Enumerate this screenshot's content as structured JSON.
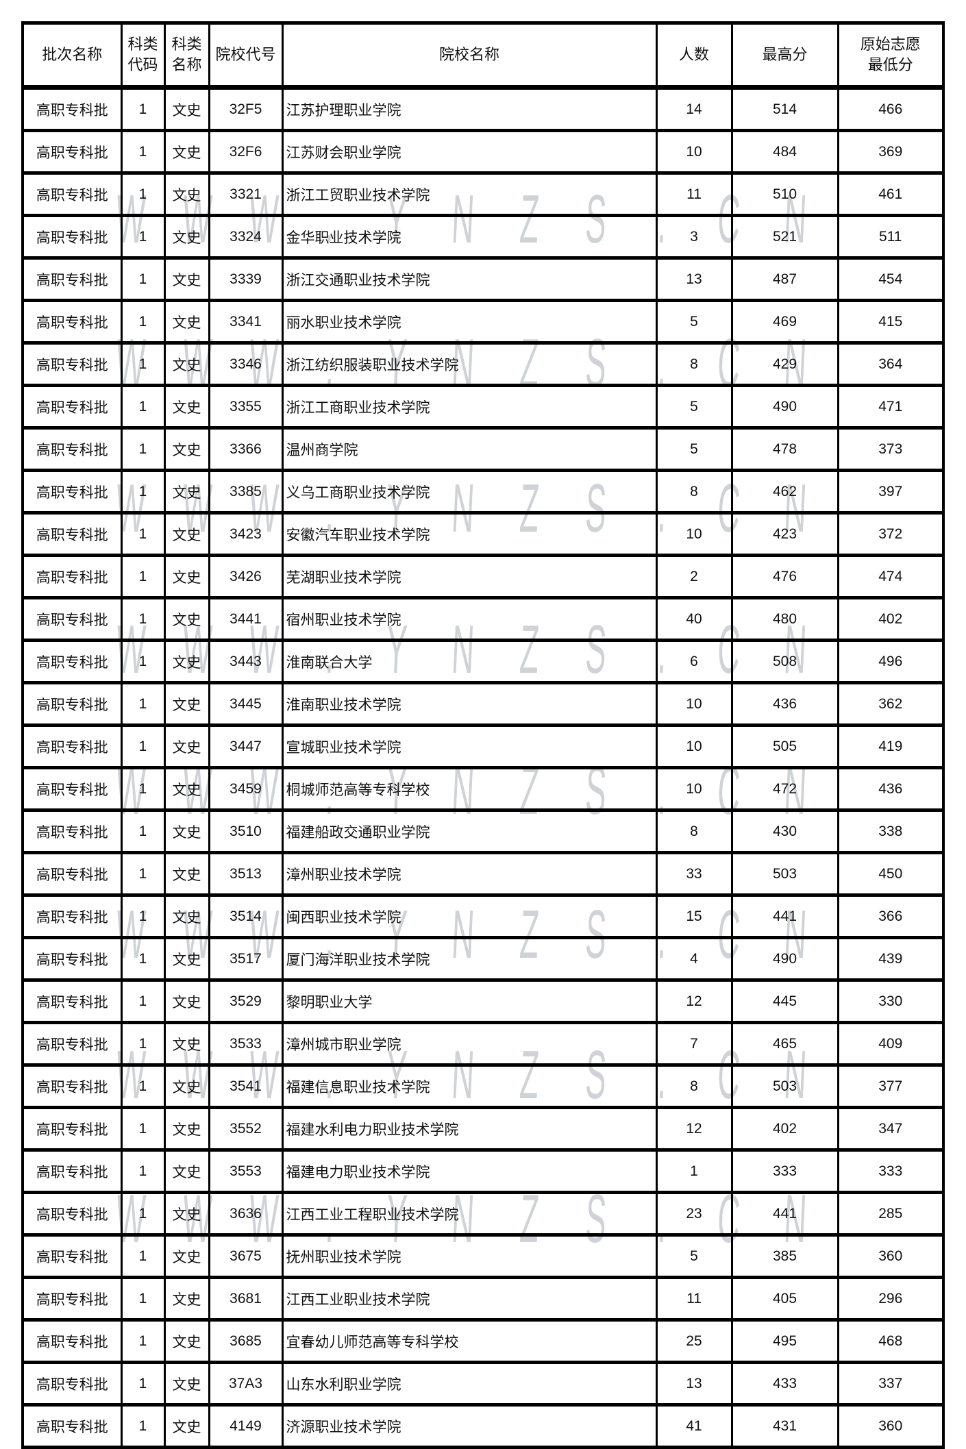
{
  "watermark": {
    "text": "WWW.YNZS.CN",
    "color": "#cfd2d6"
  },
  "table": {
    "headers": [
      "批次名称",
      "科类\n代码",
      "科类\n名称",
      "院校代号",
      "院校名称",
      "人数",
      "最高分",
      "原始志愿\n最低分"
    ],
    "rows": [
      [
        "高职专科批",
        "1",
        "文史",
        "32F5",
        "江苏护理职业学院",
        "14",
        "514",
        "466"
      ],
      [
        "高职专科批",
        "1",
        "文史",
        "32F6",
        "江苏财会职业学院",
        "10",
        "484",
        "369"
      ],
      [
        "高职专科批",
        "1",
        "文史",
        "3321",
        "浙江工贸职业技术学院",
        "11",
        "510",
        "461"
      ],
      [
        "高职专科批",
        "1",
        "文史",
        "3324",
        "金华职业技术学院",
        "3",
        "521",
        "511"
      ],
      [
        "高职专科批",
        "1",
        "文史",
        "3339",
        "浙江交通职业技术学院",
        "13",
        "487",
        "454"
      ],
      [
        "高职专科批",
        "1",
        "文史",
        "3341",
        "丽水职业技术学院",
        "5",
        "469",
        "415"
      ],
      [
        "高职专科批",
        "1",
        "文史",
        "3346",
        "浙江纺织服装职业技术学院",
        "8",
        "429",
        "364"
      ],
      [
        "高职专科批",
        "1",
        "文史",
        "3355",
        "浙江工商职业技术学院",
        "5",
        "490",
        "471"
      ],
      [
        "高职专科批",
        "1",
        "文史",
        "3366",
        "温州商学院",
        "5",
        "478",
        "373"
      ],
      [
        "高职专科批",
        "1",
        "文史",
        "3385",
        "义乌工商职业技术学院",
        "8",
        "462",
        "397"
      ],
      [
        "高职专科批",
        "1",
        "文史",
        "3423",
        "安徽汽车职业技术学院",
        "10",
        "423",
        "372"
      ],
      [
        "高职专科批",
        "1",
        "文史",
        "3426",
        "芜湖职业技术学院",
        "2",
        "476",
        "474"
      ],
      [
        "高职专科批",
        "1",
        "文史",
        "3441",
        "宿州职业技术学院",
        "40",
        "480",
        "402"
      ],
      [
        "高职专科批",
        "1",
        "文史",
        "3443",
        "淮南联合大学",
        "6",
        "508",
        "496"
      ],
      [
        "高职专科批",
        "1",
        "文史",
        "3445",
        "淮南职业技术学院",
        "10",
        "436",
        "362"
      ],
      [
        "高职专科批",
        "1",
        "文史",
        "3447",
        "宣城职业技术学院",
        "10",
        "505",
        "419"
      ],
      [
        "高职专科批",
        "1",
        "文史",
        "3459",
        "桐城师范高等专科学校",
        "10",
        "472",
        "436"
      ],
      [
        "高职专科批",
        "1",
        "文史",
        "3510",
        "福建船政交通职业学院",
        "8",
        "430",
        "338"
      ],
      [
        "高职专科批",
        "1",
        "文史",
        "3513",
        "漳州职业技术学院",
        "33",
        "503",
        "450"
      ],
      [
        "高职专科批",
        "1",
        "文史",
        "3514",
        "闽西职业技术学院",
        "15",
        "441",
        "366"
      ],
      [
        "高职专科批",
        "1",
        "文史",
        "3517",
        "厦门海洋职业技术学院",
        "4",
        "490",
        "439"
      ],
      [
        "高职专科批",
        "1",
        "文史",
        "3529",
        "黎明职业大学",
        "12",
        "445",
        "330"
      ],
      [
        "高职专科批",
        "1",
        "文史",
        "3533",
        "漳州城市职业学院",
        "7",
        "465",
        "409"
      ],
      [
        "高职专科批",
        "1",
        "文史",
        "3541",
        "福建信息职业技术学院",
        "8",
        "503",
        "377"
      ],
      [
        "高职专科批",
        "1",
        "文史",
        "3552",
        "福建水利电力职业技术学院",
        "12",
        "402",
        "347"
      ],
      [
        "高职专科批",
        "1",
        "文史",
        "3553",
        "福建电力职业技术学院",
        "1",
        "333",
        "333"
      ],
      [
        "高职专科批",
        "1",
        "文史",
        "3636",
        "江西工业工程职业技术学院",
        "23",
        "441",
        "285"
      ],
      [
        "高职专科批",
        "1",
        "文史",
        "3675",
        "抚州职业技术学院",
        "5",
        "385",
        "360"
      ],
      [
        "高职专科批",
        "1",
        "文史",
        "3681",
        "江西工业职业技术学院",
        "11",
        "405",
        "296"
      ],
      [
        "高职专科批",
        "1",
        "文史",
        "3685",
        "宜春幼儿师范高等专科学校",
        "25",
        "495",
        "468"
      ],
      [
        "高职专科批",
        "1",
        "文史",
        "37A3",
        "山东水利职业学院",
        "13",
        "433",
        "337"
      ],
      [
        "高职专科批",
        "1",
        "文史",
        "4149",
        "济源职业技术学院",
        "41",
        "431",
        "360"
      ]
    ]
  }
}
